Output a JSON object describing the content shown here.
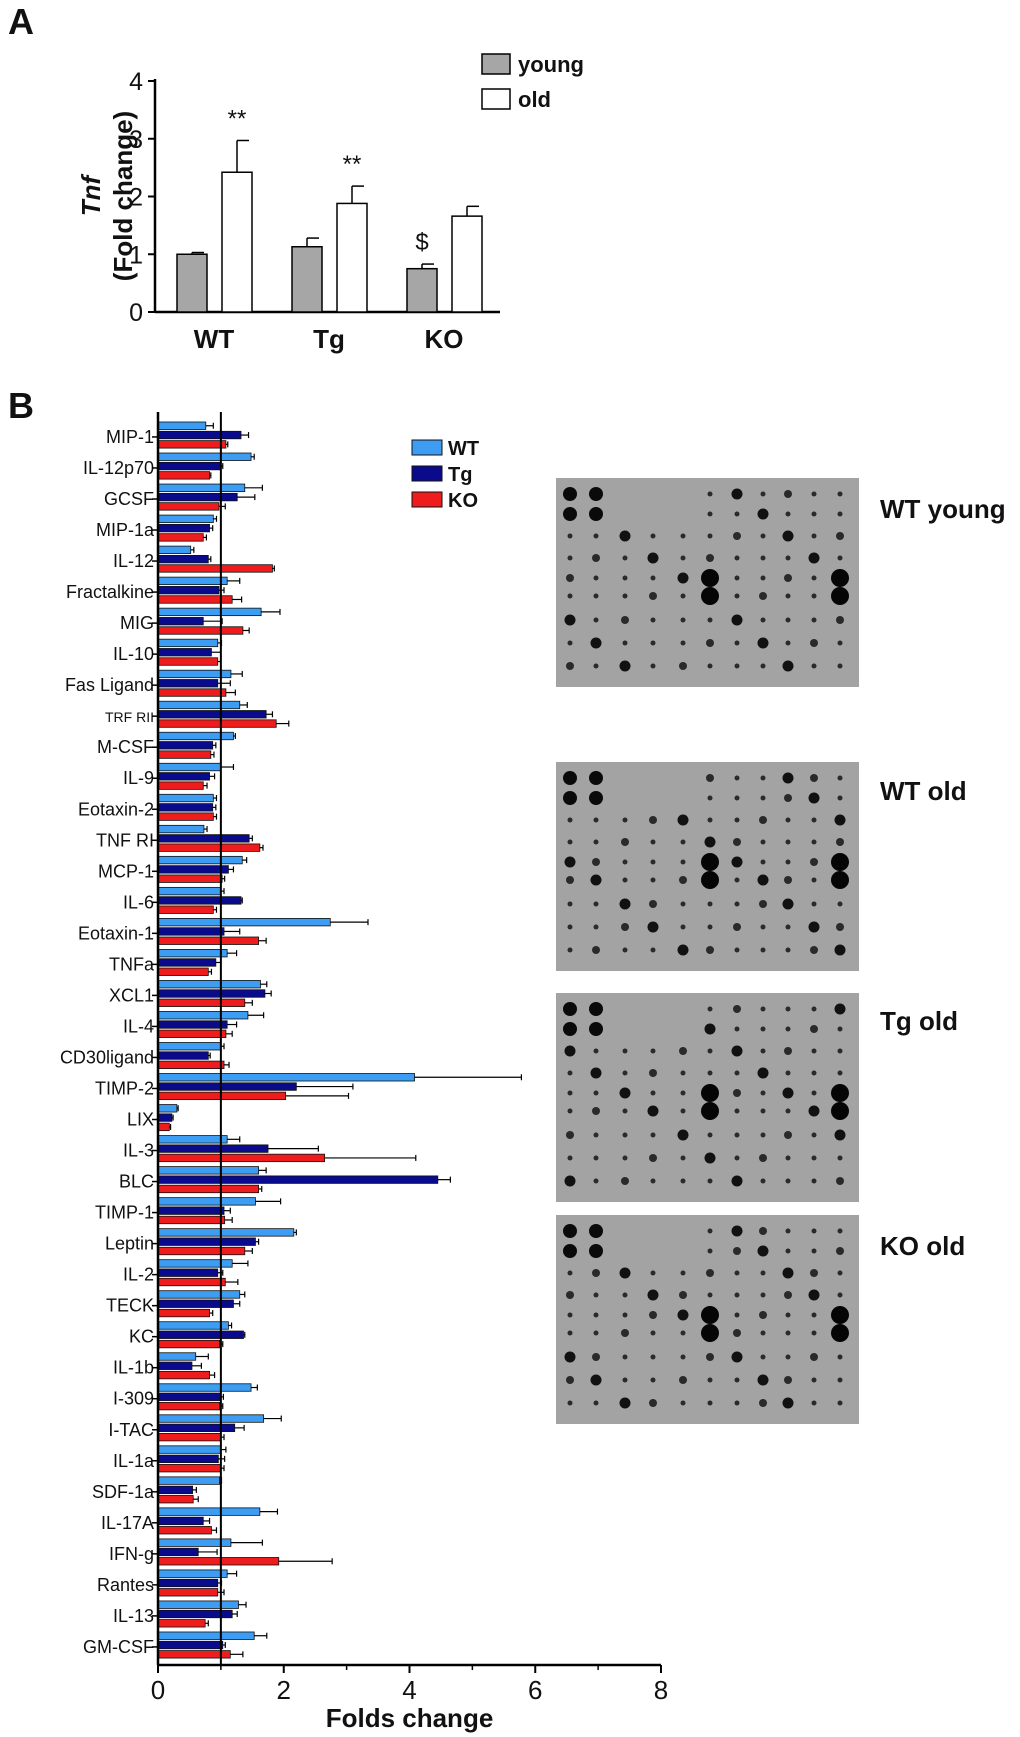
{
  "panels": {
    "a_letter": "A",
    "b_letter": "B"
  },
  "chart_data": [
    {
      "type": "bar",
      "panel": "A",
      "ylabel_italic": "Tnf",
      "ylabel": "(Fold change)",
      "categories": [
        "WT",
        "Tg",
        "KO"
      ],
      "ylim": [
        0,
        4
      ],
      "yticks": [
        0,
        1,
        2,
        3,
        4
      ],
      "legend_position": "top-right",
      "series": [
        {
          "name": "young",
          "color": "#a6a6a6",
          "values": [
            1.0,
            1.13,
            0.75
          ],
          "errors": [
            0.03,
            0.15,
            0.08
          ]
        },
        {
          "name": "old",
          "color": "#ffffff",
          "values": [
            2.42,
            1.88,
            1.66
          ],
          "errors": [
            0.55,
            0.3,
            0.17
          ]
        }
      ],
      "annotations": [
        {
          "text": "**",
          "category": "WT",
          "series": "old"
        },
        {
          "text": "**",
          "category": "Tg",
          "series": "old"
        },
        {
          "text": "$",
          "category": "KO",
          "series": "young"
        }
      ]
    },
    {
      "type": "bar",
      "orientation": "horizontal",
      "panel": "B",
      "xlabel": "Folds change",
      "xlim": [
        0,
        8
      ],
      "xticks": [
        0,
        2,
        4,
        6,
        8
      ],
      "reference_line": 1,
      "legend_position": "top-right",
      "categories": [
        "MIP-1",
        "IL-12p70",
        "GCSF",
        "MIP-1a",
        "IL-12",
        "Fractalkine",
        "MIG",
        "IL-10",
        "Fas Ligand",
        "TRF RII",
        "M-CSF",
        "IL-9",
        "Eotaxin-2",
        "TNF RI",
        "MCP-1",
        "IL-6",
        "Eotaxin-1",
        "TNFa",
        "XCL1",
        "IL-4",
        "CD30ligand",
        "TIMP-2",
        "LIX",
        "IL-3",
        "BLC",
        "TIMP-1",
        "Leptin",
        "IL-2",
        "TECK",
        "KC",
        "IL-1b",
        "I-309",
        "I-TAC",
        "IL-1a",
        "SDF-1a",
        "IL-17A",
        "IFN-g",
        "Rantes",
        "IL-13",
        "GM-CSF"
      ],
      "series": [
        {
          "name": "WT",
          "color": "#3d9df3",
          "values": [
            0.76,
            1.48,
            1.38,
            0.88,
            0.52,
            1.1,
            1.64,
            0.95,
            1.16,
            1.3,
            1.2,
            1.0,
            0.88,
            0.73,
            1.34,
            1.0,
            2.74,
            1.1,
            1.63,
            1.43,
            1.0,
            4.08,
            0.3,
            1.1,
            1.6,
            1.55,
            2.16,
            1.18,
            1.3,
            1.12,
            0.6,
            1.48,
            1.68,
            1.0,
            0.98,
            1.62,
            1.16,
            1.1,
            1.28,
            1.53
          ],
          "errors": [
            0.12,
            0.05,
            0.28,
            0.05,
            0.05,
            0.2,
            0.3,
            0.06,
            0.18,
            0.12,
            0.03,
            0.2,
            0.05,
            0.05,
            0.07,
            0.05,
            0.6,
            0.15,
            0.1,
            0.25,
            0.05,
            1.7,
            0.02,
            0.2,
            0.12,
            0.4,
            0.04,
            0.25,
            0.08,
            0.05,
            0.2,
            0.1,
            0.28,
            0.08,
            0.03,
            0.28,
            0.5,
            0.15,
            0.12,
            0.2
          ]
        },
        {
          "name": "Tg",
          "color": "#0a0a8c",
          "values": [
            1.32,
            1.0,
            1.26,
            0.82,
            0.8,
            0.97,
            0.72,
            0.85,
            0.95,
            1.72,
            0.87,
            0.82,
            0.87,
            1.45,
            1.12,
            1.32,
            1.05,
            0.92,
            1.7,
            1.1,
            0.8,
            2.2,
            0.22,
            1.75,
            4.45,
            1.05,
            1.55,
            0.95,
            1.2,
            1.36,
            0.54,
            1.0,
            1.22,
            0.96,
            0.55,
            0.72,
            0.64,
            0.95,
            1.18,
            1.03
          ],
          "errors": [
            0.12,
            0.03,
            0.28,
            0.05,
            0.04,
            0.08,
            0.3,
            0.15,
            0.2,
            0.1,
            0.05,
            0.08,
            0.05,
            0.05,
            0.08,
            0.02,
            0.25,
            0.08,
            0.1,
            0.15,
            0.03,
            0.9,
            0.02,
            0.8,
            0.2,
            0.1,
            0.05,
            0.08,
            0.1,
            0.02,
            0.15,
            0.04,
            0.15,
            0.1,
            0.06,
            0.1,
            0.3,
            0.06,
            0.08,
            0.04
          ]
        },
        {
          "name": "KO",
          "color": "#ee1c1c",
          "values": [
            1.08,
            0.82,
            0.97,
            0.72,
            1.82,
            1.18,
            1.35,
            0.95,
            1.08,
            1.88,
            0.84,
            0.72,
            0.88,
            1.62,
            1.02,
            0.88,
            1.6,
            0.8,
            1.38,
            1.08,
            1.05,
            2.03,
            0.18,
            2.65,
            1.6,
            1.06,
            1.38,
            1.07,
            0.82,
            0.98,
            0.82,
            0.98,
            1.0,
            1.0,
            0.56,
            0.85,
            1.92,
            0.95,
            0.75,
            1.15
          ],
          "errors": [
            0.03,
            0.02,
            0.1,
            0.05,
            0.03,
            0.15,
            0.1,
            0.05,
            0.15,
            0.2,
            0.05,
            0.06,
            0.05,
            0.05,
            0.04,
            0.05,
            0.12,
            0.05,
            0.12,
            0.1,
            0.08,
            1.0,
            0.02,
            1.45,
            0.05,
            0.12,
            0.12,
            0.2,
            0.05,
            0.05,
            0.08,
            0.05,
            0.05,
            0.05,
            0.08,
            0.08,
            0.85,
            0.1,
            0.05,
            0.2
          ]
        }
      ]
    }
  ],
  "arrays": {
    "labels": [
      "WT young",
      "WT old",
      "Tg old",
      "KO old"
    ]
  }
}
